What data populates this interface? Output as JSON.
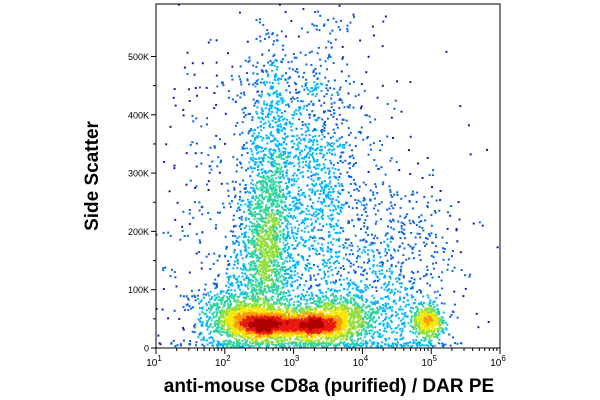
{
  "chart_data": {
    "type": "scatter",
    "title": "",
    "xlabel": "anti-mouse CD8a (purified) / DAR PE",
    "ylabel": "Side Scatter",
    "x_scale": "log",
    "y_scale": "linear",
    "xlim": [
      10,
      1000000
    ],
    "ylim": [
      0,
      590000
    ],
    "x_ticks": [
      {
        "value": 10,
        "base": "10",
        "exp": "1"
      },
      {
        "value": 100,
        "base": "10",
        "exp": "2"
      },
      {
        "value": 1000,
        "base": "10",
        "exp": "3"
      },
      {
        "value": 10000,
        "base": "10",
        "exp": "4"
      },
      {
        "value": 100000,
        "base": "10",
        "exp": "5"
      },
      {
        "value": 1000000,
        "base": "10",
        "exp": "6"
      }
    ],
    "y_ticks": [
      {
        "value": 0,
        "label": "0"
      },
      {
        "value": 100000,
        "label": "100K"
      },
      {
        "value": 200000,
        "label": "200K"
      },
      {
        "value": 300000,
        "label": "300K"
      },
      {
        "value": 400000,
        "label": "400K"
      },
      {
        "value": 500000,
        "label": "500K"
      }
    ],
    "grid": false,
    "legend": "none",
    "density_colormap": [
      "#1a1aa8",
      "#0a64e6",
      "#00b4ff",
      "#2fd3a0",
      "#8fe03a",
      "#f5e800",
      "#ff9800",
      "#e81a0f",
      "#b00000"
    ],
    "populations": [
      {
        "x_center": 350,
        "y_center": 40000,
        "x_spread_decades": 0.28,
        "y_spread": 12000,
        "weight": 0.16
      },
      {
        "x_center": 2000,
        "y_center": 38000,
        "x_spread_decades": 0.3,
        "y_spread": 11000,
        "weight": 0.14
      },
      {
        "x_center": 4000,
        "y_center": 55000,
        "x_spread_decades": 0.45,
        "y_spread": 25000,
        "weight": 0.1
      },
      {
        "x_center": 400,
        "y_center": 170000,
        "x_spread_decades": 0.2,
        "y_spread": 70000,
        "weight": 0.12
      },
      {
        "x_center": 500,
        "y_center": 330000,
        "x_spread_decades": 0.22,
        "y_spread": 110000,
        "weight": 0.07
      },
      {
        "x_center": 2500,
        "y_center": 320000,
        "x_spread_decades": 0.25,
        "y_spread": 110000,
        "weight": 0.06
      },
      {
        "x_center": 90000,
        "y_center": 45000,
        "x_spread_decades": 0.12,
        "y_spread": 15000,
        "weight": 0.05
      },
      {
        "x_center": 800,
        "y_center": 200000,
        "x_spread_decades": 0.9,
        "y_spread": 180000,
        "weight": 0.14
      },
      {
        "x_center": 150,
        "y_center": 60000,
        "x_spread_decades": 0.35,
        "y_spread": 30000,
        "weight": 0.08
      },
      {
        "x_center": 20000,
        "y_center": 120000,
        "x_spread_decades": 0.6,
        "y_spread": 90000,
        "weight": 0.08
      }
    ]
  }
}
